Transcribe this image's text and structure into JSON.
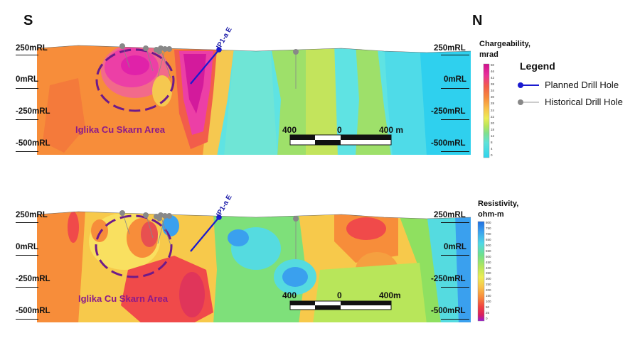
{
  "directions": {
    "south": "S",
    "north": "N"
  },
  "sections": [
    {
      "id": "chargeability",
      "elevation_labels": [
        "250mRL",
        "0mRL",
        "-250mRL",
        "-500mRL"
      ],
      "colorbar": {
        "title_line1": "Chargeability,",
        "title_line2": "mrad",
        "ticks": [
          "50",
          "46",
          "42",
          "38",
          "34",
          "30",
          "28",
          "24",
          "22",
          "20",
          "18",
          "12",
          "8",
          "4",
          "0"
        ]
      },
      "area_label": "Iglika Cu Skarn Area",
      "drill_hole_label": "IP1-a E",
      "scale": {
        "left": "400",
        "mid": "0",
        "right": "400 m"
      }
    },
    {
      "id": "resistivity",
      "elevation_labels": [
        "250mRL",
        "0mRL",
        "-250mRL",
        "-500mRL"
      ],
      "colorbar": {
        "title_line1": "Resistivity,",
        "title_line2": "ohm-m",
        "ticks": [
          "800",
          "750",
          "700",
          "650",
          "600",
          "550",
          "500",
          "450",
          "400",
          "350",
          "300",
          "250",
          "200",
          "150",
          "100",
          "50",
          "25",
          "0"
        ]
      },
      "area_label": "Iglika Cu Skarn Area",
      "drill_hole_label": "IP1-a E",
      "scale": {
        "left": "400",
        "mid": "0",
        "right": "400m"
      }
    }
  ],
  "legend": {
    "title": "Legend",
    "planned": "Planned  Drill Hole",
    "historical": "Historical Drill Hole",
    "planned_color": "#1a1ad0",
    "historical_color": "#888888"
  }
}
